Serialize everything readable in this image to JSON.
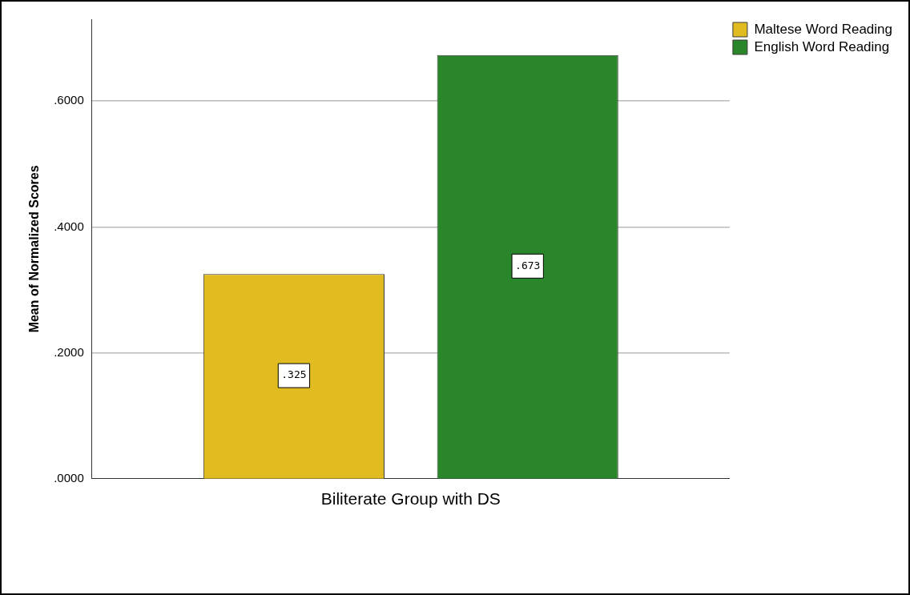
{
  "chart_data": {
    "type": "bar",
    "ylabel": "Mean of Normalized Scores",
    "categories": [
      "Biliterate Group with DS"
    ],
    "series": [
      {
        "name": "Maltese Word Reading",
        "color": "#e0bc20",
        "values": [
          0.325
        ],
        "value_labels": [
          ".325"
        ]
      },
      {
        "name": "English Word Reading",
        "color": "#2a862a",
        "values": [
          0.673
        ],
        "value_labels": [
          ".673"
        ]
      }
    ],
    "ylim": [
      0,
      0.73
    ],
    "yticks": [
      {
        "value": 0,
        "label": ".0000"
      },
      {
        "value": 0.2,
        "label": ".2000"
      },
      {
        "value": 0.4,
        "label": ".4000"
      },
      {
        "value": 0.6,
        "label": ".6000"
      }
    ],
    "grid": "y",
    "legend": "top right"
  }
}
